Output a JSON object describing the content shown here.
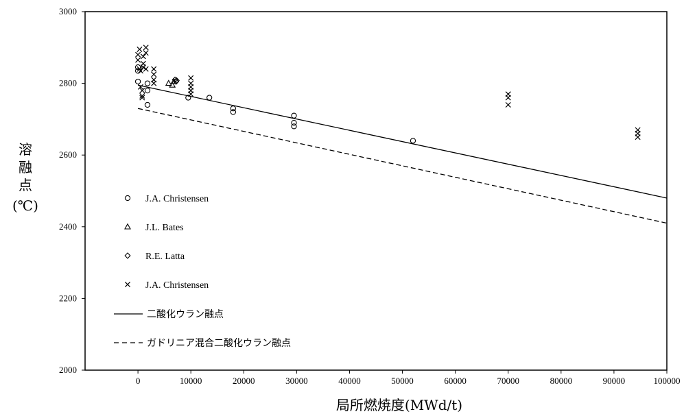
{
  "chart_data": {
    "type": "scatter",
    "xlabel": "局所燃焼度(MWd/t)",
    "ylabel": [
      "溶",
      "融",
      "点",
      "(℃)"
    ],
    "xlim": [
      -10000,
      100000
    ],
    "ylim": [
      2000,
      3000
    ],
    "xticks": [
      0,
      10000,
      20000,
      30000,
      40000,
      50000,
      60000,
      70000,
      80000,
      90000,
      100000
    ],
    "yticks": [
      2000,
      2200,
      2400,
      2600,
      2800,
      3000
    ],
    "grid": false,
    "legend_position": "left",
    "series": [
      {
        "name": "J.A. Christensen",
        "marker": "circle",
        "points": [
          [
            0,
            2805
          ],
          [
            0,
            2835
          ],
          [
            0,
            2845
          ],
          [
            1800,
            2800
          ],
          [
            1800,
            2780
          ],
          [
            1800,
            2740
          ],
          [
            9500,
            2760
          ],
          [
            13500,
            2760
          ],
          [
            18000,
            2730
          ],
          [
            18000,
            2720
          ],
          [
            29500,
            2710
          ],
          [
            29500,
            2690
          ],
          [
            29500,
            2680
          ],
          [
            52000,
            2640
          ]
        ]
      },
      {
        "name": "J.L. Bates",
        "marker": "triangle",
        "points": [
          [
            5800,
            2800
          ],
          [
            6500,
            2795
          ],
          [
            6800,
            2805
          ]
        ]
      },
      {
        "name": "R.E. Latta",
        "marker": "diamond",
        "points": [
          [
            7000,
            2810
          ],
          [
            7200,
            2805
          ],
          [
            7300,
            2808
          ]
        ]
      },
      {
        "name": "J.A. Christensen",
        "marker": "x",
        "points": [
          [
            0,
            2880
          ],
          [
            0,
            2865
          ],
          [
            300,
            2895
          ],
          [
            300,
            2840
          ],
          [
            500,
            2835
          ],
          [
            500,
            2790
          ],
          [
            800,
            2780
          ],
          [
            800,
            2765
          ],
          [
            800,
            2760
          ],
          [
            1000,
            2875
          ],
          [
            1000,
            2855
          ],
          [
            1000,
            2845
          ],
          [
            1500,
            2900
          ],
          [
            1500,
            2885
          ],
          [
            1500,
            2840
          ],
          [
            3000,
            2840
          ],
          [
            3000,
            2825
          ],
          [
            3000,
            2810
          ],
          [
            3000,
            2800
          ],
          [
            10000,
            2815
          ],
          [
            10000,
            2800
          ],
          [
            10000,
            2790
          ],
          [
            10000,
            2780
          ],
          [
            10000,
            2770
          ],
          [
            70000,
            2770
          ],
          [
            70000,
            2760
          ],
          [
            70000,
            2740
          ],
          [
            94500,
            2670
          ],
          [
            94500,
            2660
          ],
          [
            94500,
            2650
          ]
        ]
      },
      {
        "name": "二酸化ウラン融点",
        "line": "solid",
        "points": [
          [
            0,
            2795
          ],
          [
            100000,
            2480
          ]
        ]
      },
      {
        "name": "ガドリニア混合二酸化ウラン融点",
        "line": "dashed",
        "points": [
          [
            0,
            2730
          ],
          [
            100000,
            2410
          ]
        ]
      }
    ]
  }
}
